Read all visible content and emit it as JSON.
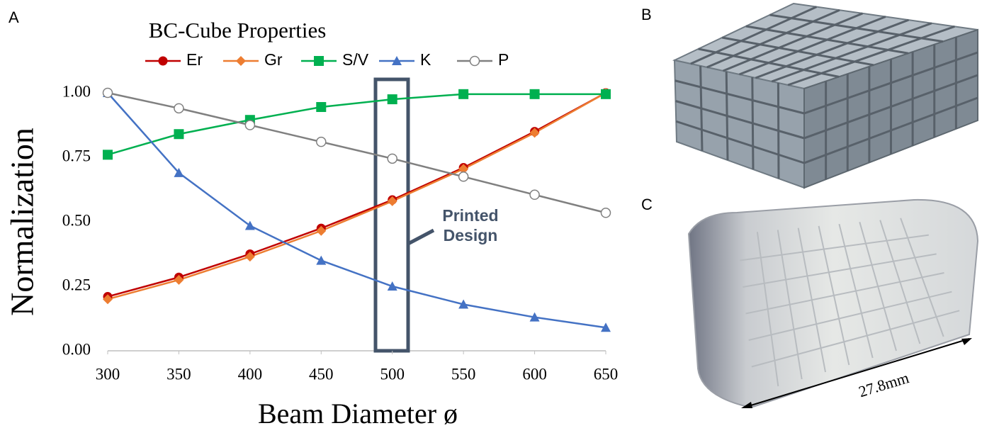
{
  "chart_data": {
    "type": "line",
    "title": "BC-Cube Properties",
    "x_label": "Beam Diameter ø",
    "y_label": "Normalization",
    "x": [
      300,
      350,
      400,
      450,
      500,
      550,
      600,
      650
    ],
    "xlim": [
      300,
      650
    ],
    "xticks": [
      300,
      350,
      400,
      450,
      500,
      550,
      600,
      650
    ],
    "ylim": [
      0,
      1
    ],
    "yticks": [
      {
        "value": 0,
        "label": "0.00"
      },
      {
        "value": 0.25,
        "label": "0.25"
      },
      {
        "value": 0.5,
        "label": "0.50"
      },
      {
        "value": 0.75,
        "label": "0.75"
      },
      {
        "value": 1,
        "label": "1.00"
      }
    ],
    "series": [
      {
        "name": "Er",
        "color": "#c00000",
        "marker": "circle",
        "values": [
          0.21,
          0.285,
          0.375,
          0.475,
          0.585,
          0.71,
          0.85,
          1.0
        ]
      },
      {
        "name": "Gr",
        "color": "#ed7d31",
        "marker": "diamond",
        "values": [
          0.2,
          0.275,
          0.365,
          0.465,
          0.58,
          0.705,
          0.845,
          1.0
        ]
      },
      {
        "name": "S/V",
        "color": "#00b050",
        "marker": "square",
        "values": [
          0.76,
          0.84,
          0.895,
          0.945,
          0.975,
          0.995,
          0.995,
          0.995
        ]
      },
      {
        "name": "K",
        "color": "#4472c4",
        "marker": "triangle",
        "values": [
          1.0,
          0.69,
          0.485,
          0.35,
          0.25,
          0.18,
          0.13,
          0.09
        ]
      },
      {
        "name": "P",
        "color": "#808080",
        "marker": "open-circle",
        "values": [
          1.0,
          0.94,
          0.875,
          0.81,
          0.745,
          0.675,
          0.605,
          0.535
        ]
      }
    ],
    "annotation": "Printed Design"
  },
  "panel_labels": [
    "A",
    "B",
    "C"
  ],
  "dimension_label": "27.8mm"
}
